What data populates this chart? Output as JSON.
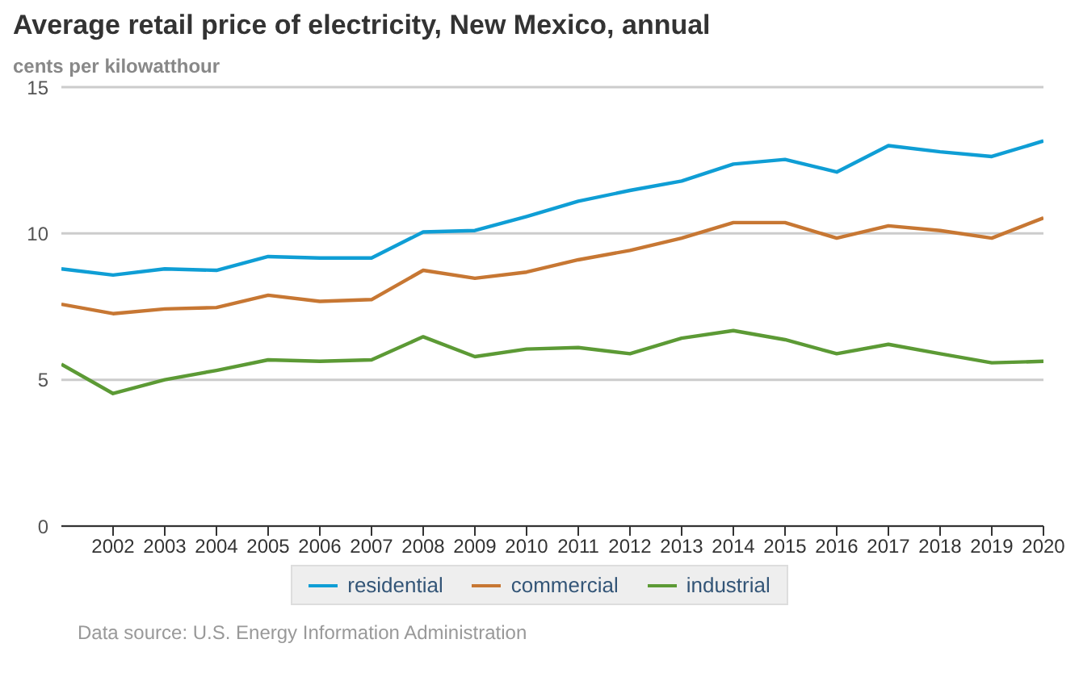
{
  "chart_data": {
    "type": "line",
    "title": "Average retail price of electricity, New Mexico, annual",
    "subtitle": "cents per kilowatthour",
    "x": [
      2001,
      2002,
      2003,
      2004,
      2005,
      2006,
      2007,
      2008,
      2009,
      2010,
      2011,
      2012,
      2013,
      2014,
      2015,
      2016,
      2017,
      2018,
      2019,
      2020
    ],
    "series": [
      {
        "name": "residential",
        "color": "#0f9ed5",
        "values": [
          8.79,
          8.58,
          8.79,
          8.74,
          9.21,
          9.16,
          9.16,
          10.05,
          10.1,
          10.58,
          11.1,
          11.47,
          11.79,
          12.37,
          12.53,
          12.1,
          13.0,
          12.79,
          12.63,
          13.16
        ]
      },
      {
        "name": "commercial",
        "color": "#c77733",
        "values": [
          7.58,
          7.26,
          7.42,
          7.47,
          7.89,
          7.68,
          7.74,
          8.74,
          8.47,
          8.68,
          9.1,
          9.42,
          9.84,
          10.37,
          10.37,
          9.84,
          10.26,
          10.1,
          9.84,
          10.53
        ]
      },
      {
        "name": "industrial",
        "color": "#5c9a35",
        "values": [
          5.53,
          4.53,
          5.0,
          5.32,
          5.68,
          5.63,
          5.68,
          6.47,
          5.79,
          6.05,
          6.1,
          5.89,
          6.42,
          6.68,
          6.37,
          5.89,
          6.21,
          5.89,
          5.58,
          5.63
        ]
      }
    ],
    "xlim": [
      2001,
      2020
    ],
    "xticks": [
      2002,
      2003,
      2004,
      2005,
      2006,
      2007,
      2008,
      2009,
      2010,
      2011,
      2012,
      2013,
      2014,
      2015,
      2016,
      2017,
      2018,
      2019,
      2020
    ],
    "ylim": [
      0,
      15
    ],
    "yticks": [
      0,
      5,
      10,
      15
    ],
    "grid": "y",
    "legend": "bottom",
    "marker": "none",
    "line_style": "solid",
    "annotations": [
      "Data source: U.S. Energy Information Administration"
    ]
  }
}
